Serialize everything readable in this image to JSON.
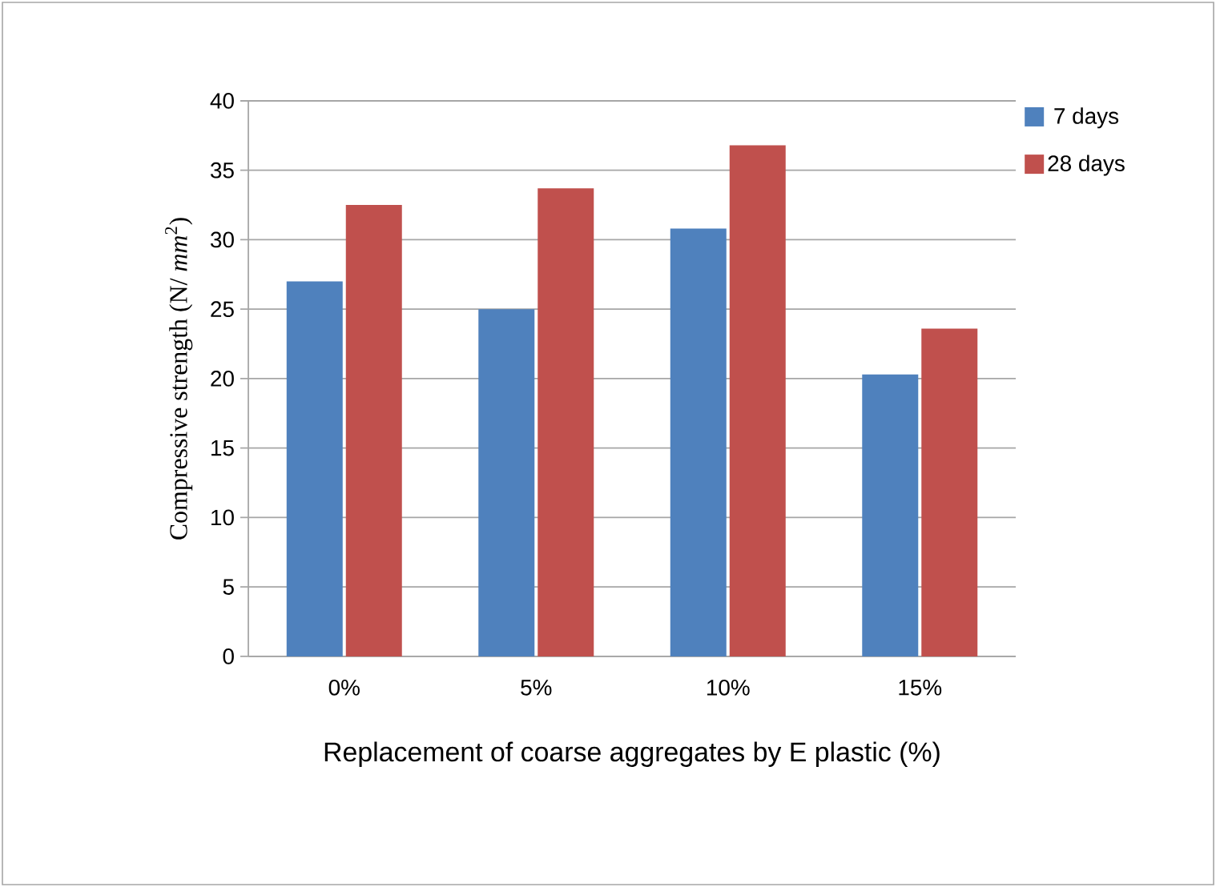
{
  "chart_data": {
    "type": "bar",
    "categories": [
      "0%",
      "5%",
      "10%",
      "15%"
    ],
    "series": [
      {
        "name": "7 days",
        "color": "#4f81bd",
        "values": [
          27.0,
          25.0,
          30.8,
          20.3
        ]
      },
      {
        "name": "28 days",
        "color": "#c0504d",
        "values": [
          32.5,
          33.7,
          36.8,
          23.6
        ]
      }
    ],
    "xlabel": "Replacement of coarse aggregates by E plastic (%)",
    "ylabel": "Compressive strength  (N/ *mm*$^{2}$)",
    "ylim": [
      0,
      40
    ],
    "yticks": [
      0,
      5,
      10,
      15,
      20,
      25,
      30,
      35,
      40
    ],
    "grid": "y",
    "legend": "right"
  }
}
